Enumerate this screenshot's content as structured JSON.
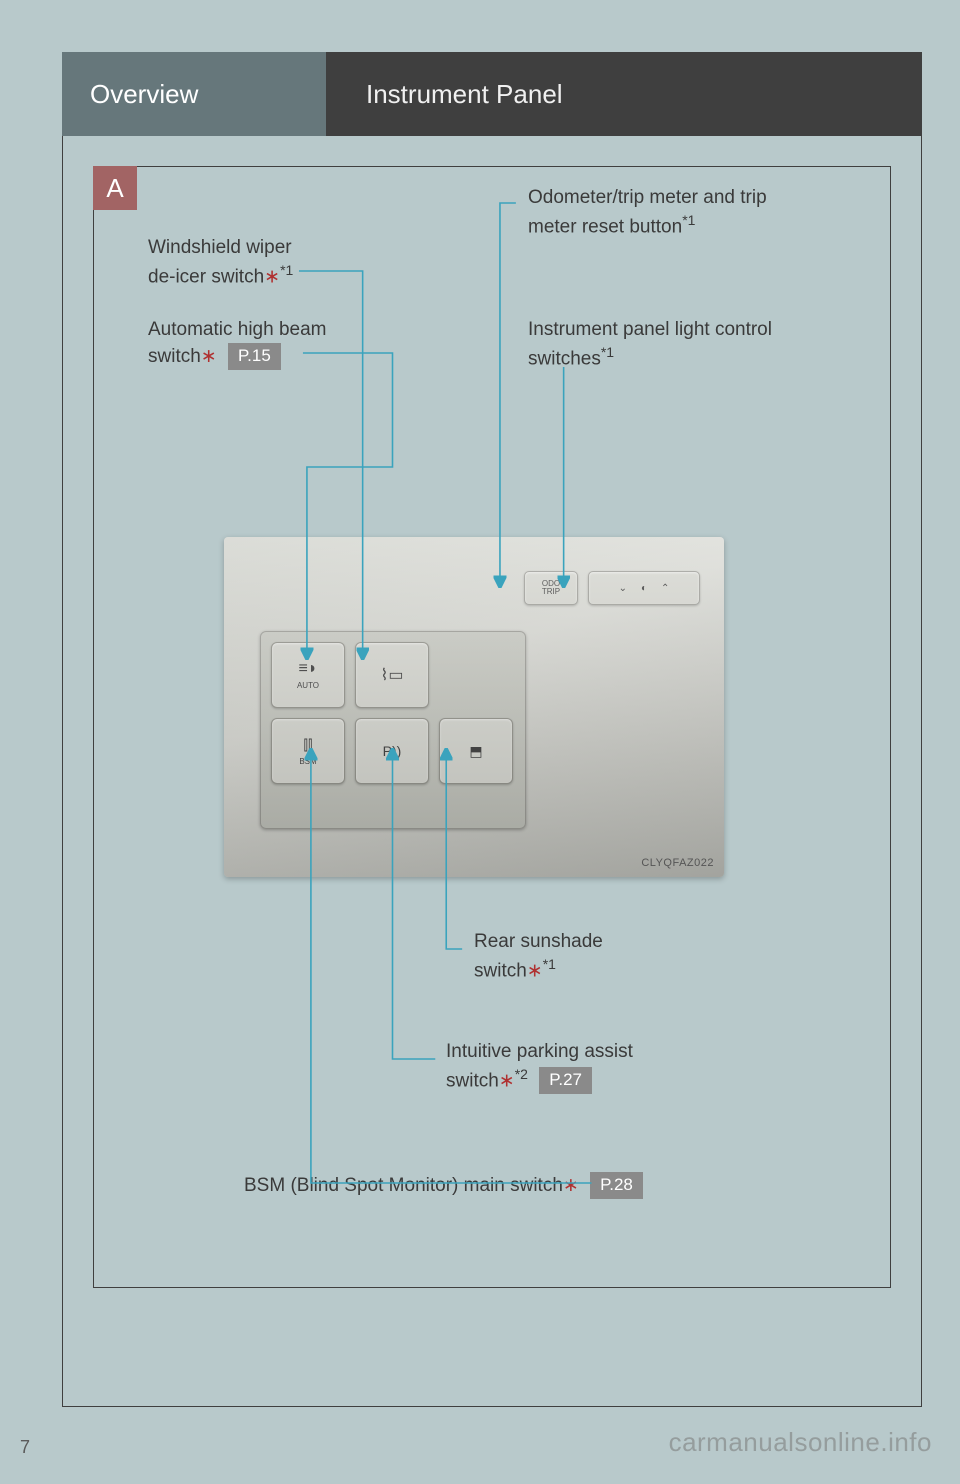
{
  "header": {
    "left": "Overview",
    "right": "Instrument Panel"
  },
  "badge": "A",
  "labels": {
    "wiper": {
      "text": "Windshield wiper\nde-icer switch",
      "ast": "∗",
      "sup": "*1"
    },
    "highbeam": {
      "text": "Automatic high beam\nswitch",
      "ast": "∗",
      "pref": "P.15"
    },
    "odo": {
      "text": "Odometer/trip meter and trip\nmeter reset button",
      "sup": "*1"
    },
    "dimmer": {
      "text": "Instrument panel light control\nswitches",
      "sup": "*1"
    },
    "sunshade": {
      "text": "Rear sunshade\nswitch",
      "ast": "∗",
      "sup": "*1"
    },
    "ipa": {
      "text": "Intuitive parking assist\nswitch",
      "ast": "∗",
      "sup": "*2",
      "pref": "P.27"
    },
    "bsm": {
      "text": "BSM (Blind Spot Monitor) main switch",
      "ast": "∗",
      "pref": "P.28"
    }
  },
  "photo": {
    "tag": "CLYQFAZ022",
    "odo_btn": "ODO\nTRIP",
    "buttons": {
      "auto": "AUTO",
      "bsm": "BSM",
      "p": "P"
    }
  },
  "colors": {
    "page_bg": "#b8c9cb",
    "header_left_bg": "#66777b",
    "header_right_bg": "#3f3f3f",
    "badge_bg": "#a26464",
    "lead_line": "#3aa3bd",
    "pref_bg": "#8a8a8a",
    "asterisk": "#b03030"
  },
  "page_number": "7",
  "watermark": "carmanualsonline.info"
}
